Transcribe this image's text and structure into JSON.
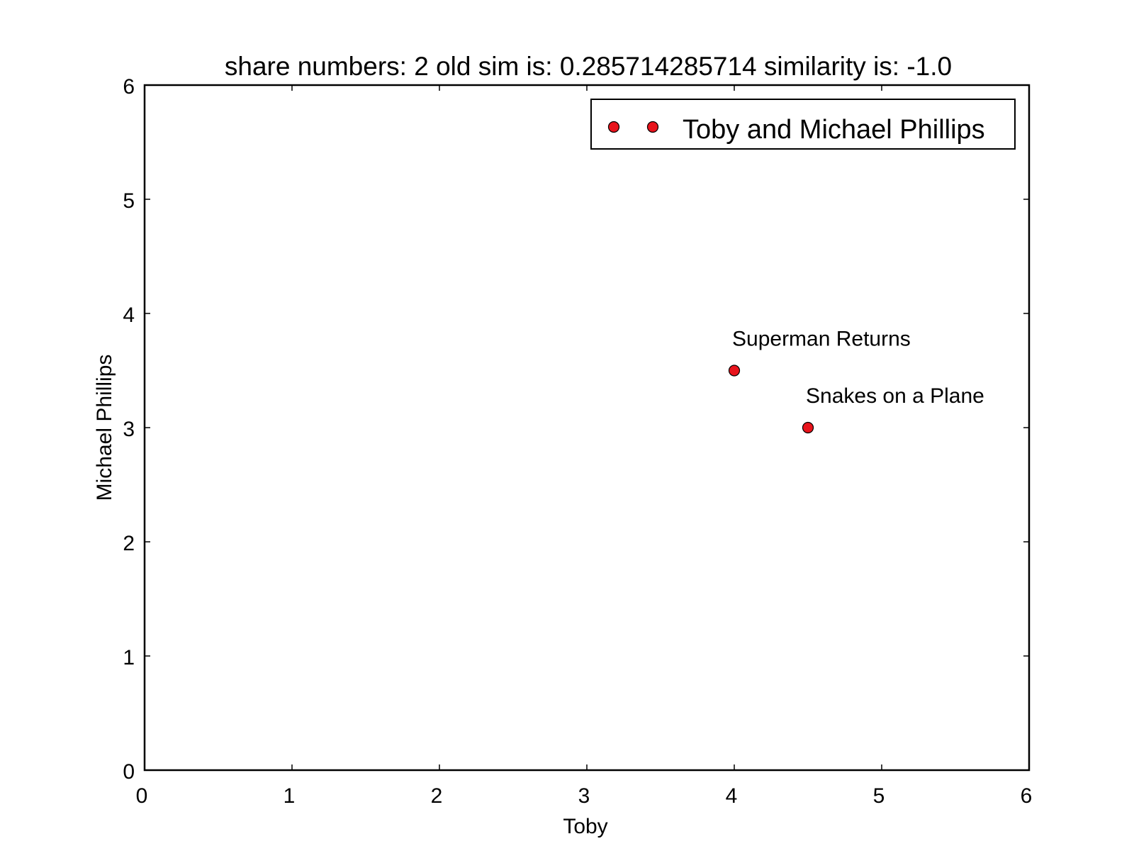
{
  "chart_data": {
    "type": "scatter",
    "title": "share numbers: 2 old sim is: 0.285714285714 similarity is: -1.0",
    "xlabel": "Toby",
    "ylabel": "Michael Phillips",
    "xlim": [
      0,
      6
    ],
    "ylim": [
      0,
      6
    ],
    "xticks": [
      0,
      1,
      2,
      3,
      4,
      5,
      6
    ],
    "yticks": [
      0,
      1,
      2,
      3,
      4,
      5,
      6
    ],
    "grid": false,
    "legend": {
      "position": "top-right",
      "entries": [
        "Toby and Michael Phillips"
      ]
    },
    "series": [
      {
        "name": "Toby and Michael Phillips",
        "color": "#e8141c",
        "points": [
          {
            "x": 4.0,
            "y": 3.5,
            "label": "Superman Returns"
          },
          {
            "x": 4.5,
            "y": 3.0,
            "label": "Snakes on a Plane"
          }
        ]
      }
    ]
  }
}
